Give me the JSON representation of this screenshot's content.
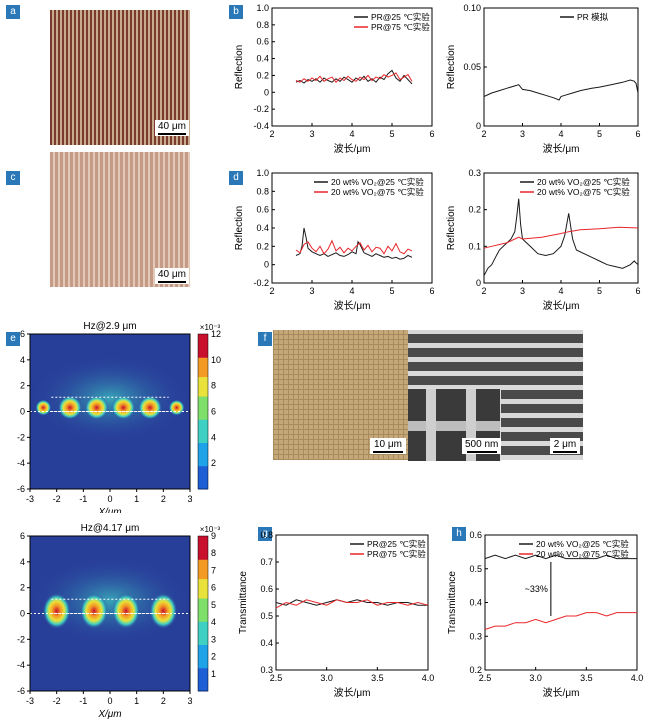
{
  "panels": {
    "a": {
      "tag": "a",
      "scale": "40 μm"
    },
    "b": {
      "tag": "b"
    },
    "c": {
      "tag": "c",
      "scale": "40 μm"
    },
    "d": {
      "tag": "d"
    },
    "e": {
      "tag": "e"
    },
    "f": {
      "tag": "f",
      "scale1": "10 μm",
      "scale2": "500 nm",
      "scale3": "2 μm"
    },
    "g": {
      "tag": "g"
    },
    "h": {
      "tag": "h"
    }
  },
  "colors": {
    "black": "#1a1a1a",
    "red": "#e8262a",
    "accent": "#2a78b8"
  },
  "chart_data": [
    {
      "id": "b-left",
      "type": "line",
      "xlabel": "波长/μm",
      "ylabel": "Reflection",
      "xlim": [
        2,
        6
      ],
      "ylim": [
        -0.4,
        1.0
      ],
      "xticks": [
        "2",
        "3",
        "4",
        "5",
        "6"
      ],
      "yticks": [
        "-0.4",
        "-0.2",
        "0",
        "0.2",
        "0.4",
        "0.6",
        "0.8",
        "1.0"
      ],
      "legend": "top-right",
      "series": [
        {
          "name": "PR@25 ℃实验",
          "color": "#1a1a1a",
          "x": [
            2.6,
            2.7,
            2.8,
            2.9,
            3.0,
            3.1,
            3.2,
            3.3,
            3.4,
            3.5,
            3.6,
            3.7,
            3.8,
            3.9,
            4.0,
            4.1,
            4.2,
            4.3,
            4.4,
            4.5,
            4.6,
            4.7,
            4.8,
            4.9,
            5.0,
            5.1,
            5.2,
            5.3,
            5.4,
            5.5
          ],
          "y": [
            0.12,
            0.14,
            0.11,
            0.15,
            0.13,
            0.16,
            0.12,
            0.17,
            0.14,
            0.12,
            0.16,
            0.13,
            0.18,
            0.15,
            0.12,
            0.17,
            0.14,
            0.19,
            0.13,
            0.16,
            0.12,
            0.18,
            0.15,
            0.22,
            0.26,
            0.17,
            0.13,
            0.2,
            0.15,
            0.1
          ]
        },
        {
          "name": "PR@75 ℃实验",
          "color": "#e8262a",
          "x": [
            2.6,
            2.7,
            2.8,
            2.9,
            3.0,
            3.1,
            3.2,
            3.3,
            3.4,
            3.5,
            3.6,
            3.7,
            3.8,
            3.9,
            4.0,
            4.1,
            4.2,
            4.3,
            4.4,
            4.5,
            4.6,
            4.7,
            4.8,
            4.9,
            5.0,
            5.1,
            5.2,
            5.3,
            5.4,
            5.5
          ],
          "y": [
            0.14,
            0.12,
            0.16,
            0.13,
            0.17,
            0.14,
            0.19,
            0.13,
            0.16,
            0.18,
            0.12,
            0.17,
            0.14,
            0.19,
            0.15,
            0.13,
            0.18,
            0.15,
            0.2,
            0.14,
            0.18,
            0.16,
            0.21,
            0.18,
            0.2,
            0.23,
            0.15,
            0.18,
            0.21,
            0.13
          ]
        }
      ]
    },
    {
      "id": "b-right",
      "type": "line",
      "xlabel": "波长/μm",
      "ylabel": "Reflection",
      "xlim": [
        2,
        6
      ],
      "ylim": [
        0,
        0.1
      ],
      "xticks": [
        "2",
        "3",
        "4",
        "5",
        "6"
      ],
      "yticks": [
        "0",
        "0.05",
        "0.10"
      ],
      "legend": "top-right",
      "series": [
        {
          "name": "PR 模拟",
          "color": "#1a1a1a",
          "x": [
            2.0,
            2.2,
            2.4,
            2.6,
            2.8,
            2.9,
            3.0,
            3.2,
            3.4,
            3.6,
            3.8,
            3.95,
            4.0,
            4.1,
            4.3,
            4.5,
            4.8,
            5.0,
            5.3,
            5.6,
            5.8,
            5.9,
            5.95,
            6.0
          ],
          "y": [
            0.025,
            0.028,
            0.03,
            0.032,
            0.034,
            0.035,
            0.031,
            0.03,
            0.028,
            0.026,
            0.024,
            0.022,
            0.025,
            0.026,
            0.028,
            0.03,
            0.032,
            0.033,
            0.035,
            0.037,
            0.039,
            0.038,
            0.036,
            0.028
          ]
        }
      ]
    },
    {
      "id": "d-left",
      "type": "line",
      "xlabel": "波长/μm",
      "ylabel": "Reflection",
      "xlim": [
        2,
        6
      ],
      "ylim": [
        -0.2,
        1.0
      ],
      "xticks": [
        "2",
        "3",
        "4",
        "5",
        "6"
      ],
      "yticks": [
        "-0.2",
        "0",
        "0.2",
        "0.4",
        "0.6",
        "0.8",
        "1.0"
      ],
      "legend": "top-right",
      "series": [
        {
          "name": "20 wt% VO₂@25 ℃实验",
          "color": "#1a1a1a",
          "x": [
            2.6,
            2.7,
            2.75,
            2.8,
            2.85,
            2.9,
            3.0,
            3.1,
            3.2,
            3.3,
            3.4,
            3.5,
            3.6,
            3.7,
            3.8,
            3.9,
            4.0,
            4.1,
            4.15,
            4.2,
            4.3,
            4.4,
            4.5,
            4.6,
            4.7,
            4.8,
            4.9,
            5.0,
            5.1,
            5.2,
            5.3,
            5.4,
            5.5
          ],
          "y": [
            0.1,
            0.12,
            0.2,
            0.4,
            0.3,
            0.18,
            0.14,
            0.12,
            0.1,
            0.12,
            0.09,
            0.11,
            0.13,
            0.1,
            0.09,
            0.11,
            0.14,
            0.12,
            0.25,
            0.22,
            0.13,
            0.11,
            0.09,
            0.12,
            0.1,
            0.08,
            0.09,
            0.07,
            0.08,
            0.06,
            0.07,
            0.1,
            0.08
          ]
        },
        {
          "name": "20 wt% VO₂@75 ℃实验",
          "color": "#e8262a",
          "x": [
            2.6,
            2.7,
            2.8,
            2.9,
            3.0,
            3.1,
            3.2,
            3.3,
            3.4,
            3.5,
            3.6,
            3.7,
            3.8,
            3.9,
            4.0,
            4.1,
            4.2,
            4.3,
            4.4,
            4.5,
            4.6,
            4.7,
            4.8,
            4.9,
            5.0,
            5.1,
            5.2,
            5.3,
            5.4,
            5.5
          ],
          "y": [
            0.16,
            0.13,
            0.22,
            0.25,
            0.18,
            0.14,
            0.2,
            0.12,
            0.17,
            0.26,
            0.15,
            0.19,
            0.13,
            0.18,
            0.15,
            0.2,
            0.24,
            0.16,
            0.21,
            0.14,
            0.19,
            0.18,
            0.12,
            0.2,
            0.15,
            0.23,
            0.14,
            0.12,
            0.17,
            0.15
          ]
        }
      ]
    },
    {
      "id": "d-right",
      "type": "line",
      "xlabel": "波长/μm",
      "ylabel": "Reflection",
      "xlim": [
        2,
        6
      ],
      "ylim": [
        0,
        0.3
      ],
      "xticks": [
        "2",
        "3",
        "4",
        "5",
        "6"
      ],
      "yticks": [
        "0",
        "0.1",
        "0.2",
        "0.3"
      ],
      "legend": "top-right",
      "series": [
        {
          "name": "20 wt% VO₂@25 ℃实验",
          "color": "#1a1a1a",
          "x": [
            2.0,
            2.1,
            2.2,
            2.3,
            2.4,
            2.5,
            2.6,
            2.7,
            2.8,
            2.85,
            2.9,
            2.95,
            3.0,
            3.2,
            3.4,
            3.6,
            3.8,
            4.0,
            4.1,
            4.2,
            4.3,
            4.4,
            4.6,
            4.8,
            5.0,
            5.2,
            5.4,
            5.6,
            5.8,
            5.9,
            6.0
          ],
          "y": [
            0.02,
            0.04,
            0.05,
            0.07,
            0.09,
            0.1,
            0.11,
            0.12,
            0.14,
            0.18,
            0.23,
            0.16,
            0.12,
            0.1,
            0.08,
            0.075,
            0.08,
            0.1,
            0.13,
            0.19,
            0.12,
            0.09,
            0.08,
            0.07,
            0.06,
            0.05,
            0.045,
            0.04,
            0.05,
            0.06,
            0.05
          ]
        },
        {
          "name": "20 wt% VO₂@75 ℃实验",
          "color": "#e8262a",
          "x": [
            2.0,
            2.2,
            2.4,
            2.6,
            2.8,
            2.9,
            3.0,
            3.5,
            4.0,
            4.2,
            4.5,
            5.0,
            5.5,
            6.0
          ],
          "y": [
            0.095,
            0.1,
            0.105,
            0.11,
            0.12,
            0.125,
            0.12,
            0.125,
            0.135,
            0.14,
            0.145,
            0.148,
            0.152,
            0.15
          ]
        }
      ]
    },
    {
      "id": "e-top",
      "type": "heatmap",
      "title": "Hz@2.9 μm",
      "xlabel": "X/μm",
      "xlim": [
        -3,
        3
      ],
      "ylim": [
        -6,
        6
      ],
      "xticks": [
        "-3",
        "-2",
        "-1",
        "0",
        "1",
        "2",
        "3"
      ],
      "yticks": [
        "-6",
        "-4",
        "-2",
        "0",
        "2",
        "4",
        "6"
      ],
      "colorbar": {
        "label": "×10⁻³",
        "min": 0,
        "max": 12,
        "ticks": [
          "2",
          "4",
          "6",
          "8",
          "10",
          "12"
        ]
      }
    },
    {
      "id": "e-bottom",
      "type": "heatmap",
      "title": "Hz@4.17 μm",
      "xlabel": "X/μm",
      "xlim": [
        -3,
        3
      ],
      "ylim": [
        -6,
        6
      ],
      "xticks": [
        "-3",
        "-2",
        "-1",
        "0",
        "1",
        "2",
        "3"
      ],
      "yticks": [
        "-6",
        "-4",
        "-2",
        "0",
        "2",
        "4",
        "6"
      ],
      "colorbar": {
        "label": "×10⁻³",
        "min": 0,
        "max": 9,
        "ticks": [
          "1",
          "2",
          "3",
          "4",
          "5",
          "6",
          "7",
          "8",
          "9"
        ]
      }
    },
    {
      "id": "g",
      "type": "line",
      "xlabel": "波长/μm",
      "ylabel": "Transmittance",
      "xlim": [
        2.5,
        4.0
      ],
      "ylim": [
        0.3,
        0.8
      ],
      "xticks": [
        "2.5",
        "3.0",
        "3.5",
        "4.0"
      ],
      "yticks": [
        "0.3",
        "0.4",
        "0.5",
        "0.6",
        "0.7",
        "0.8"
      ],
      "legend": "top-right",
      "series": [
        {
          "name": "PR@25 ℃实验",
          "color": "#1a1a1a",
          "x": [
            2.5,
            2.6,
            2.7,
            2.8,
            2.9,
            3.0,
            3.1,
            3.2,
            3.3,
            3.4,
            3.5,
            3.6,
            3.7,
            3.8,
            3.9,
            4.0
          ],
          "y": [
            0.55,
            0.54,
            0.56,
            0.55,
            0.54,
            0.55,
            0.56,
            0.55,
            0.56,
            0.55,
            0.55,
            0.54,
            0.55,
            0.55,
            0.54,
            0.54
          ]
        },
        {
          "name": "PR@75 ℃实验",
          "color": "#e8262a",
          "x": [
            2.5,
            2.6,
            2.7,
            2.8,
            2.9,
            3.0,
            3.1,
            3.2,
            3.3,
            3.4,
            3.5,
            3.6,
            3.7,
            3.8,
            3.9,
            4.0
          ],
          "y": [
            0.53,
            0.55,
            0.54,
            0.56,
            0.55,
            0.54,
            0.56,
            0.55,
            0.55,
            0.56,
            0.54,
            0.55,
            0.55,
            0.54,
            0.55,
            0.54
          ]
        }
      ]
    },
    {
      "id": "h",
      "type": "line",
      "xlabel": "波长/μm",
      "ylabel": "Transmittance",
      "xlim": [
        2.5,
        4.0
      ],
      "ylim": [
        0.2,
        0.6
      ],
      "xticks": [
        "2.5",
        "3.0",
        "3.5",
        "4.0"
      ],
      "yticks": [
        "0.2",
        "0.3",
        "0.4",
        "0.5",
        "0.6"
      ],
      "legend": "top-right",
      "annotation": "~33%",
      "series": [
        {
          "name": "20 wt% VO₂@25 ℃实验",
          "color": "#1a1a1a",
          "x": [
            2.5,
            2.6,
            2.7,
            2.8,
            2.9,
            3.0,
            3.1,
            3.2,
            3.3,
            3.4,
            3.5,
            3.6,
            3.7,
            3.8,
            3.9,
            4.0
          ],
          "y": [
            0.53,
            0.54,
            0.53,
            0.54,
            0.53,
            0.54,
            0.53,
            0.54,
            0.53,
            0.53,
            0.53,
            0.53,
            0.54,
            0.53,
            0.53,
            0.53
          ]
        },
        {
          "name": "20 wt% VO₂@75 ℃实验",
          "color": "#e8262a",
          "x": [
            2.5,
            2.6,
            2.7,
            2.8,
            2.9,
            3.0,
            3.1,
            3.2,
            3.3,
            3.4,
            3.5,
            3.6,
            3.7,
            3.8,
            3.9,
            4.0
          ],
          "y": [
            0.32,
            0.33,
            0.33,
            0.34,
            0.34,
            0.35,
            0.34,
            0.35,
            0.36,
            0.36,
            0.37,
            0.37,
            0.36,
            0.37,
            0.37,
            0.37
          ]
        }
      ]
    }
  ]
}
